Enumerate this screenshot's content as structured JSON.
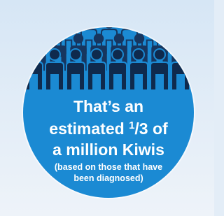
{
  "headline": {
    "line1": "That’s an",
    "line2_start": "estimated",
    "fraction_numerator": "1",
    "fraction_rest": "/3",
    "line2_end": "of",
    "line3": "a million Kiwis"
  },
  "note": {
    "line1": "(based on those that have",
    "line2": "been diagnosed)"
  }
}
